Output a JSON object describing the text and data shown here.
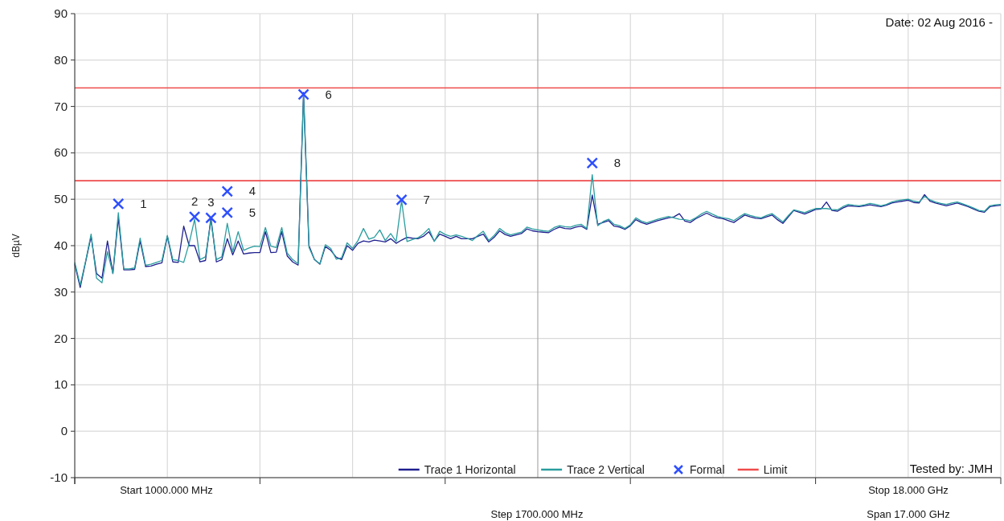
{
  "chart_data": {
    "type": "line",
    "ylabel": "dBµV",
    "annotations": [
      "Date: 02 Aug 2016 -",
      "Tested by: JMH",
      "Start 1000.000 MHz",
      "Stop 18.000 GHz",
      "Step 1700.000 MHz",
      "Span 17.000 GHz",
      "1",
      "2",
      "3",
      "4",
      "5",
      "6",
      "7",
      "8"
    ],
    "categories": [
      null,
      null,
      null,
      null,
      null,
      null,
      null,
      null,
      null,
      null,
      null,
      null,
      null,
      null,
      null,
      null,
      null,
      null,
      null,
      null,
      null,
      null,
      null,
      null,
      null,
      null,
      null,
      null,
      null,
      null,
      null,
      null,
      null,
      null,
      null,
      null,
      null,
      null,
      null,
      null,
      null,
      null,
      null,
      null,
      null,
      null,
      null,
      null,
      null,
      null,
      null,
      null,
      null,
      null,
      null,
      null,
      null,
      null,
      null,
      null,
      null,
      null,
      null,
      null,
      null,
      null,
      null,
      null,
      null,
      null,
      null,
      null,
      null,
      null,
      null,
      null,
      null,
      null,
      null,
      null,
      null,
      null,
      null,
      null,
      null,
      null,
      null,
      null,
      null,
      null,
      null,
      null,
      null,
      null,
      null,
      null,
      null,
      null,
      null,
      null,
      null,
      null,
      null,
      null,
      null,
      null,
      null,
      null,
      null,
      null,
      null,
      null,
      null,
      null,
      null,
      null,
      null,
      null,
      null,
      null,
      null,
      null,
      null,
      null,
      null,
      null,
      null,
      null,
      null,
      null,
      null,
      null,
      null,
      null,
      null,
      null,
      null,
      null,
      null,
      null,
      null,
      null,
      null,
      null,
      null,
      null,
      null,
      null,
      null,
      null,
      null,
      null,
      null,
      null,
      null,
      null,
      null,
      null,
      null,
      null,
      null,
      null,
      null,
      null,
      null,
      null,
      null,
      null,
      null,
      null,
      null
    ],
    "series": [
      {
        "name": "Trace 1 Horizontal",
        "color": "#1f1f8f",
        "values": [
          36,
          31,
          36.5,
          42,
          34,
          33,
          41,
          34,
          46,
          34.8,
          34.8,
          34.9,
          41,
          35.5,
          35.6,
          36,
          36.3,
          42,
          36.5,
          36.4,
          44.2,
          40,
          40,
          36.5,
          36.8,
          46,
          36.5,
          37,
          41.5,
          38,
          41,
          38.2,
          38.4,
          38.5,
          38.5,
          43,
          38.5,
          38.6,
          43,
          37.8,
          36.5,
          35.8,
          73,
          40,
          37,
          36,
          39.8,
          39,
          37.5,
          37,
          40,
          39,
          40.5,
          41,
          40.8,
          41.2,
          41,
          40.8,
          41.5,
          40.5,
          41.2,
          41.8,
          41.6,
          41.5,
          42,
          43,
          41,
          42.5,
          42,
          41.5,
          42,
          41.5,
          41.5,
          41.5,
          42,
          42.5,
          40.8,
          41.8,
          43.2,
          42.4,
          42,
          42.3,
          42.6,
          43.6,
          43.2,
          43,
          42.9,
          42.8,
          43.5,
          44,
          43.7,
          43.6,
          44,
          44.2,
          43.5,
          50.9,
          44.6,
          45,
          45.4,
          44.2,
          44,
          43.5,
          44.3,
          45.6,
          45,
          44.6,
          45,
          45.4,
          45.7,
          46,
          46.2,
          46.9,
          45.3,
          45,
          45.8,
          46.4,
          47,
          46.4,
          46,
          45.8,
          45.4,
          45,
          45.8,
          46.6,
          46.2,
          45.9,
          45.8,
          46.2,
          46.6,
          45.6,
          44.8,
          46.2,
          47.6,
          47.2,
          46.8,
          47.3,
          47.8,
          47.9,
          49.4,
          47.6,
          47.4,
          48.1,
          48.6,
          48.5,
          48.4,
          48.6,
          48.8,
          48.6,
          48.4,
          48.7,
          49.2,
          49.4,
          49.6,
          49.8,
          49.3,
          49.2,
          51,
          49.6,
          49.2,
          48.9,
          48.6,
          48.9,
          49.2,
          48.8,
          48.4,
          47.9,
          47.4,
          47.2,
          48.4,
          48.6,
          48.7
        ]
      },
      {
        "name": "Trace 2 Vertical",
        "color": "#2a9d9f",
        "values": [
          36.4,
          31.5,
          36.7,
          42.5,
          33,
          32,
          38.7,
          34,
          47.1,
          35,
          35,
          35.2,
          41.6,
          35.8,
          36,
          36.4,
          36.8,
          42.2,
          37,
          36.8,
          36.4,
          40.5,
          45.7,
          37,
          37.6,
          45.4,
          37,
          37.6,
          44.8,
          38.7,
          43,
          39,
          39.5,
          39.9,
          39.8,
          43.9,
          39.9,
          39.6,
          43.9,
          38.4,
          37,
          36.1,
          72.5,
          39.6,
          37,
          36.1,
          40.2,
          39.4,
          37.1,
          37.4,
          40.6,
          39.4,
          41.1,
          43.7,
          41.4,
          41.8,
          43.4,
          41.1,
          42.6,
          40.9,
          49.7,
          40.9,
          41.3,
          41.7,
          42.5,
          43.7,
          40.9,
          43.1,
          42.4,
          42,
          42.3,
          42,
          41.6,
          41.1,
          42.2,
          43.1,
          41.1,
          42.2,
          43.7,
          42.8,
          42.3,
          42.6,
          42.9,
          44,
          43.6,
          43.4,
          43.2,
          43.1,
          43.9,
          44.3,
          44.1,
          44,
          44.4,
          44.6,
          43.7,
          55.3,
          44.3,
          45.2,
          45.7,
          44.6,
          44.3,
          43.7,
          44.5,
          46,
          45.3,
          44.9,
          45.3,
          45.7,
          46,
          46.3,
          46,
          45.7,
          45.6,
          45.4,
          46,
          46.8,
          47.4,
          46.8,
          46.3,
          46,
          45.8,
          45.4,
          46.2,
          46.9,
          46.5,
          46.2,
          46,
          46.5,
          46.9,
          46,
          45.1,
          46.5,
          47.7,
          47.4,
          47.1,
          47.6,
          48,
          48,
          48,
          47.8,
          47.7,
          48.4,
          48.9,
          48.7,
          48.6,
          48.8,
          49.1,
          48.9,
          48.6,
          48.9,
          49.4,
          49.7,
          49.9,
          50,
          49.6,
          49.4,
          50.6,
          49.9,
          49.4,
          49.1,
          48.9,
          49.2,
          49.4,
          49,
          48.6,
          48.1,
          47.6,
          47.4,
          48.6,
          48.8,
          48.9
        ]
      },
      {
        "name": "Formal",
        "type": "scatter",
        "marker": "cross",
        "color": "#2e4fff",
        "values": [
          null,
          null,
          null,
          null,
          null,
          null,
          null,
          null,
          49,
          null,
          null,
          null,
          null,
          null,
          null,
          null,
          null,
          null,
          null,
          null,
          null,
          null,
          46.2,
          null,
          null,
          46,
          null,
          null,
          51.7,
          null,
          null,
          null,
          null,
          null,
          null,
          null,
          null,
          null,
          null,
          null,
          null,
          null,
          72.6,
          null,
          null,
          null,
          null,
          null,
          null,
          null,
          null,
          null,
          null,
          null,
          null,
          null,
          null,
          null,
          null,
          null,
          49.9,
          null,
          null,
          null,
          null,
          null,
          null,
          null,
          null,
          null,
          null,
          null,
          null,
          null,
          null,
          null,
          null,
          null,
          null,
          null,
          null,
          null,
          null,
          null,
          null,
          null,
          null,
          null,
          null,
          null,
          null,
          null,
          null,
          null,
          null,
          57.8,
          null,
          null,
          null,
          null,
          null,
          null,
          null,
          null,
          null,
          null,
          null,
          null,
          null,
          null,
          null,
          null,
          null,
          null,
          null,
          null,
          null,
          null,
          null,
          null,
          null,
          null,
          null,
          null,
          null,
          null,
          null,
          null,
          null,
          null,
          null,
          null,
          null,
          null,
          null,
          null,
          null,
          null,
          null,
          null,
          null,
          null,
          null,
          null,
          null,
          null,
          null,
          null,
          null,
          null,
          null,
          null,
          null,
          null,
          null,
          null,
          null,
          null,
          null,
          null,
          null,
          null,
          null,
          null,
          null,
          null,
          null,
          null,
          null,
          null,
          null
        ]
      },
      {
        "type": "scatter",
        "marker": "cross",
        "color": "#2e4fff",
        "values": [
          null,
          null,
          null,
          null,
          null,
          null,
          null,
          null,
          null,
          null,
          null,
          null,
          null,
          null,
          null,
          null,
          null,
          null,
          null,
          null,
          null,
          null,
          null,
          null,
          null,
          null,
          null,
          null,
          47.1,
          null,
          null,
          null,
          null,
          null,
          null,
          null,
          null,
          null,
          null,
          null,
          null,
          null,
          null,
          null,
          null,
          null,
          null,
          null,
          null,
          null,
          null,
          null,
          null,
          null,
          null,
          null,
          null,
          null,
          null,
          null,
          null,
          null,
          null,
          null,
          null,
          null,
          null,
          null,
          null,
          null,
          null,
          null,
          null,
          null,
          null,
          null,
          null,
          null,
          null,
          null,
          null,
          null,
          null,
          null,
          null,
          null,
          null,
          null,
          null,
          null,
          null,
          null,
          null,
          null,
          null,
          null,
          null,
          null,
          null,
          null,
          null,
          null,
          null,
          null,
          null,
          null,
          null,
          null,
          null,
          null,
          null,
          null,
          null,
          null,
          null,
          null,
          null,
          null,
          null,
          null,
          null,
          null,
          null,
          null,
          null,
          null,
          null,
          null,
          null,
          null,
          null,
          null,
          null,
          null,
          null,
          null,
          null,
          null,
          null,
          null,
          null,
          null,
          null,
          null,
          null,
          null,
          null,
          null,
          null,
          null,
          null,
          null,
          null,
          null,
          null,
          null,
          null,
          null,
          null,
          null,
          null,
          null,
          null,
          null,
          null,
          null,
          null,
          null,
          null,
          null,
          null
        ]
      }
    ],
    "ref_lines": [
      {
        "axis": "y",
        "value": 74,
        "label": "Limit",
        "color": "#ef4b4b"
      },
      {
        "axis": "y",
        "value": 54,
        "color": "#ef4b4b"
      }
    ],
    "ylim": [
      -10,
      90
    ],
    "yticks": [
      -10,
      0,
      10,
      20,
      30,
      40,
      50,
      60,
      70,
      80,
      90
    ],
    "tick_labels": "y",
    "grid": true,
    "legend": "bottom"
  }
}
